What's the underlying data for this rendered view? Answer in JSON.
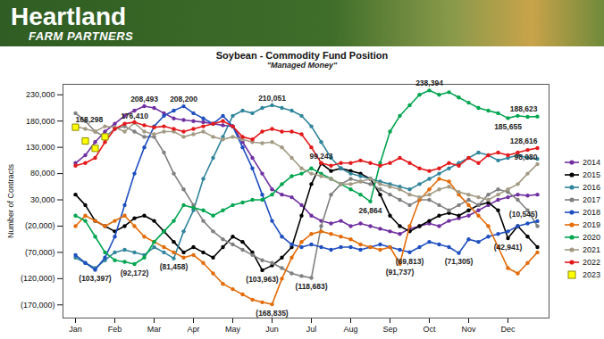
{
  "header": {
    "brand": "Heartland",
    "tagline": "FARM PARTNERS"
  },
  "chart_data": {
    "type": "line",
    "title": "Soybean - Commodity Fund Position",
    "subtitle": "\"Managed Money\"",
    "y_label": "Number of Contracts",
    "categories": [
      "Jan",
      null,
      null,
      null,
      "Feb",
      null,
      null,
      null,
      "Mar",
      null,
      null,
      null,
      "Apr",
      null,
      null,
      null,
      "May",
      null,
      null,
      null,
      "Jun",
      null,
      null,
      null,
      "Jul",
      null,
      null,
      null,
      "Aug",
      null,
      null,
      null,
      "Sep",
      null,
      null,
      null,
      "Oct",
      null,
      null,
      null,
      "Nov",
      null,
      null,
      null,
      "Dec",
      null,
      null,
      null
    ],
    "ylim": [
      -195000,
      250000
    ],
    "yticks": [
      {
        "value": -170000,
        "label": "(170,000)"
      },
      {
        "value": -120000,
        "label": "(120,000)"
      },
      {
        "value": -70000,
        "label": "(70,000)"
      },
      {
        "value": -20000,
        "label": "(20,000)"
      },
      {
        "value": 30000,
        "label": "30,000"
      },
      {
        "value": 80000,
        "label": "80,000"
      },
      {
        "value": 130000,
        "label": "130,000"
      },
      {
        "value": 180000,
        "label": "180,000"
      },
      {
        "value": 230000,
        "label": "230,000"
      }
    ],
    "grid": false,
    "legend": "right",
    "series": [
      {
        "name": "2014",
        "color": "#7030a0",
        "marker": "circle",
        "line_style": "solid",
        "values": [
          100000,
          115000,
          140000,
          160000,
          175000,
          190000,
          200000,
          208493,
          205000,
          195000,
          185000,
          182000,
          180000,
          178000,
          175000,
          172000,
          170000,
          140000,
          110000,
          80000,
          50000,
          40000,
          35000,
          20000,
          0,
          -10000,
          -15000,
          -10000,
          -20000,
          -15000,
          -20000,
          -25000,
          -30000,
          -35000,
          -25000,
          -20000,
          -15000,
          -20000,
          -10000,
          -5000,
          0,
          10000,
          20000,
          30000,
          35000,
          40000,
          38000,
          40000
        ]
      },
      {
        "name": "2015",
        "color": "#000000",
        "marker": "circle",
        "line_style": "solid",
        "values": [
          40000,
          20000,
          -10000,
          -20000,
          -30000,
          -20000,
          -5000,
          0,
          -10000,
          -30000,
          -50000,
          -70000,
          -60000,
          -70000,
          -80000,
          -60000,
          -40000,
          -50000,
          -70000,
          -103963,
          -95000,
          -80000,
          -60000,
          0,
          60000,
          99243,
          85000,
          90000,
          85000,
          80000,
          70000,
          40000,
          0,
          -20000,
          -30000,
          -20000,
          -10000,
          0,
          5000,
          0,
          10000,
          20000,
          25000,
          10000,
          -42941,
          -20000,
          -40000,
          -60000
        ]
      },
      {
        "name": "2016",
        "color": "#31859c",
        "marker": "circle",
        "line_style": "solid",
        "values": [
          -80000,
          -90000,
          -100000,
          -85000,
          -70000,
          -65000,
          -70000,
          -75000,
          -60000,
          -70000,
          -81458,
          -30000,
          10000,
          70000,
          110000,
          150000,
          190000,
          200000,
          195000,
          205000,
          210051,
          205000,
          200000,
          190000,
          170000,
          140000,
          110000,
          90000,
          80000,
          75000,
          70000,
          65000,
          60000,
          55000,
          50000,
          60000,
          70000,
          80000,
          90000,
          100000,
          110000,
          120000,
          115000,
          105000,
          110000,
          115000,
          110000,
          108000
        ]
      },
      {
        "name": "2017",
        "color": "#808080",
        "marker": "circle",
        "line_style": "solid",
        "values": [
          195000,
          180000,
          160000,
          150000,
          165000,
          170000,
          160000,
          150000,
          150000,
          120000,
          80000,
          50000,
          20000,
          -10000,
          -30000,
          -45000,
          -55000,
          -65000,
          -75000,
          -85000,
          -90000,
          -100000,
          -110000,
          -115000,
          -118683,
          -20000,
          40000,
          60000,
          70000,
          65000,
          60000,
          50000,
          40000,
          30000,
          20000,
          30000,
          30000,
          20000,
          10000,
          20000,
          30000,
          20000,
          40000,
          50000,
          45000,
          30000,
          10000,
          -20000
        ]
      },
      {
        "name": "2018",
        "color": "#1f4fbf",
        "marker": "circle",
        "line_style": "solid",
        "values": [
          -75000,
          -90000,
          -103397,
          -80000,
          -40000,
          20000,
          80000,
          130000,
          170000,
          190000,
          200000,
          208200,
          195000,
          185000,
          175000,
          190000,
          170000,
          130000,
          90000,
          40000,
          -10000,
          -40000,
          -55000,
          -60000,
          -55000,
          -60000,
          -65000,
          -60000,
          -60000,
          -65000,
          -60000,
          -55000,
          -60000,
          -65000,
          -69813,
          -60000,
          -50000,
          -55000,
          -60000,
          -71305,
          -45000,
          -50000,
          -40000,
          -35000,
          -30000,
          -20000,
          -15000,
          -10545
        ]
      },
      {
        "name": "2019",
        "color": "#e36c09",
        "marker": "circle",
        "line_style": "solid",
        "values": [
          -20000,
          0,
          -10000,
          -20000,
          -10000,
          0,
          -20000,
          -40000,
          -50000,
          -60000,
          -70000,
          -80000,
          -75000,
          -90000,
          -110000,
          -130000,
          -140000,
          -150000,
          -160000,
          -165000,
          -168835,
          -120000,
          -80000,
          -50000,
          -35000,
          -30000,
          -35000,
          -40000,
          -45000,
          -55000,
          -60000,
          -65000,
          -60000,
          -91737,
          -20000,
          30000,
          50000,
          70000,
          65000,
          40000,
          20000,
          0,
          -20000,
          -60000,
          -100000,
          -110000,
          -90000,
          -70000
        ]
      },
      {
        "name": "2020",
        "color": "#00a550",
        "marker": "circle",
        "line_style": "solid",
        "values": [
          0,
          -10000,
          -40000,
          -70000,
          -85000,
          -88000,
          -92172,
          -80000,
          -50000,
          -30000,
          -10000,
          20000,
          15000,
          10000,
          0,
          10000,
          20000,
          25000,
          30000,
          30000,
          40000,
          60000,
          75000,
          80000,
          90000,
          80000,
          70000,
          60000,
          50000,
          40000,
          26864,
          100000,
          160000,
          190000,
          210000,
          230000,
          238394,
          230000,
          235000,
          225000,
          215000,
          205000,
          200000,
          195000,
          185655,
          190000,
          188000,
          188623
        ]
      },
      {
        "name": "2021",
        "color": "#a39b84",
        "marker": "circle",
        "line_style": "solid",
        "values": [
          170000,
          165000,
          160000,
          170000,
          168000,
          160000,
          176410,
          160000,
          155000,
          160000,
          160000,
          150000,
          155000,
          160000,
          150000,
          145000,
          150000,
          145000,
          140000,
          138000,
          140000,
          130000,
          110000,
          90000,
          80000,
          75000,
          70000,
          60000,
          60000,
          65000,
          70000,
          60000,
          55000,
          50000,
          40000,
          35000,
          40000,
          50000,
          55000,
          45000,
          40000,
          35000,
          30000,
          40000,
          50000,
          60000,
          80000,
          98080
        ]
      },
      {
        "name": "2022",
        "color": "#e31a1c",
        "marker": "circle",
        "line_style": "solid",
        "values": [
          95000,
          100000,
          110000,
          140000,
          165000,
          175000,
          178000,
          172000,
          168000,
          170000,
          165000,
          160000,
          165000,
          170000,
          175000,
          180000,
          170000,
          150000,
          145000,
          160000,
          165000,
          160000,
          160000,
          155000,
          130000,
          100000,
          95000,
          100000,
          100000,
          105000,
          100000,
          95000,
          100000,
          110000,
          100000,
          90000,
          85000,
          90000,
          100000,
          95000,
          110000,
          100000,
          115000,
          120000,
          115000,
          120000,
          125000,
          128616
        ]
      },
      {
        "name": "2023",
        "color": "#ffff00",
        "marker": "square",
        "line_style": "none",
        "values": [
          168298,
          142000,
          128000,
          150000,
          null,
          null,
          null,
          null,
          null,
          null,
          null,
          null,
          null,
          null,
          null,
          null,
          null,
          null,
          null,
          null,
          null,
          null,
          null,
          null,
          null,
          null,
          null,
          null,
          null,
          null,
          null,
          null,
          null,
          null,
          null,
          null,
          null,
          null,
          null,
          null,
          null,
          null,
          null,
          null,
          null,
          null,
          null,
          null
        ]
      }
    ],
    "annotations": [
      {
        "series": "2014",
        "index": 7,
        "text": "208,493"
      },
      {
        "series": "2018",
        "index": 11,
        "text": "208,200"
      },
      {
        "series": "2021",
        "index": 6,
        "text": "176,410"
      },
      {
        "series": "2023",
        "index": 0,
        "text": "168,298"
      },
      {
        "series": "2016",
        "index": 20,
        "text": "210,051"
      },
      {
        "series": "2015",
        "index": 25,
        "text": "99,243"
      },
      {
        "series": "2020",
        "index": 30,
        "text": "26,864"
      },
      {
        "series": "2020",
        "index": 36,
        "text": "238,394"
      },
      {
        "series": "2020",
        "index": 44,
        "text": "185,655"
      },
      {
        "series": "2020",
        "index": 47,
        "text": "188,623"
      },
      {
        "series": "2022",
        "index": 47,
        "text": "128,616"
      },
      {
        "series": "2021",
        "index": 47,
        "text": "98,080"
      },
      {
        "series": "2018",
        "index": 47,
        "text": "(10,545)"
      },
      {
        "series": "2015",
        "index": 44,
        "text": "(42,941)"
      },
      {
        "series": "2018",
        "index": 39,
        "text": "(71,305)"
      },
      {
        "series": "2019",
        "index": 33,
        "text": "(91,737)"
      },
      {
        "series": "2018",
        "index": 34,
        "text": "(69,813)"
      },
      {
        "series": "2017",
        "index": 24,
        "text": "(118,683)"
      },
      {
        "series": "2019",
        "index": 20,
        "text": "(168,835)"
      },
      {
        "series": "2015",
        "index": 19,
        "text": "(103,963)"
      },
      {
        "series": "2016",
        "index": 10,
        "text": "(81,458)"
      },
      {
        "series": "2020",
        "index": 6,
        "text": "(92,172)"
      },
      {
        "series": "2018",
        "index": 2,
        "text": "(103,397)"
      }
    ]
  }
}
